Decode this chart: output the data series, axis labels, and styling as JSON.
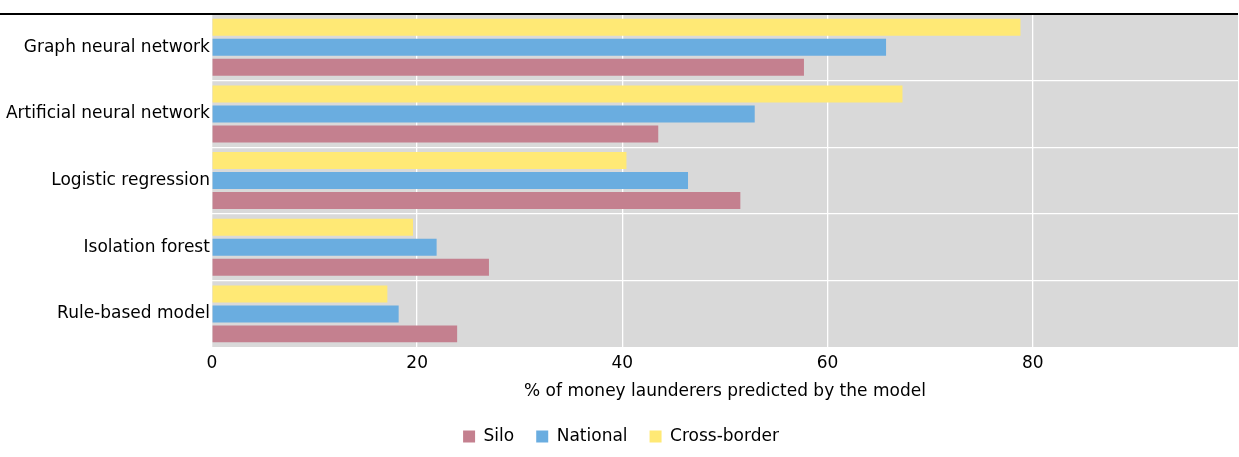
{
  "chart_data": {
    "type": "bar",
    "orientation": "horizontal",
    "xlabel": "% of money launderers predicted by the model",
    "categories": [
      "Graph neural network",
      "Artificial neural network",
      "Logistic regression",
      "Isolation forest",
      "Rule-based model"
    ],
    "series": [
      {
        "name": "Silo",
        "color": "#c4808f",
        "values": [
          57.7,
          43.5,
          51.5,
          27.0,
          23.9
        ]
      },
      {
        "name": "National",
        "color": "#6aade0",
        "values": [
          65.7,
          52.9,
          46.4,
          21.9,
          18.2
        ]
      },
      {
        "name": "Cross-border",
        "color": "#ffe975",
        "values": [
          78.8,
          67.3,
          40.4,
          19.6,
          17.1
        ]
      }
    ],
    "xlim": [
      0,
      100
    ],
    "xticks": [
      0,
      20,
      40,
      60,
      80
    ],
    "grid": true,
    "legend": "bottom"
  }
}
